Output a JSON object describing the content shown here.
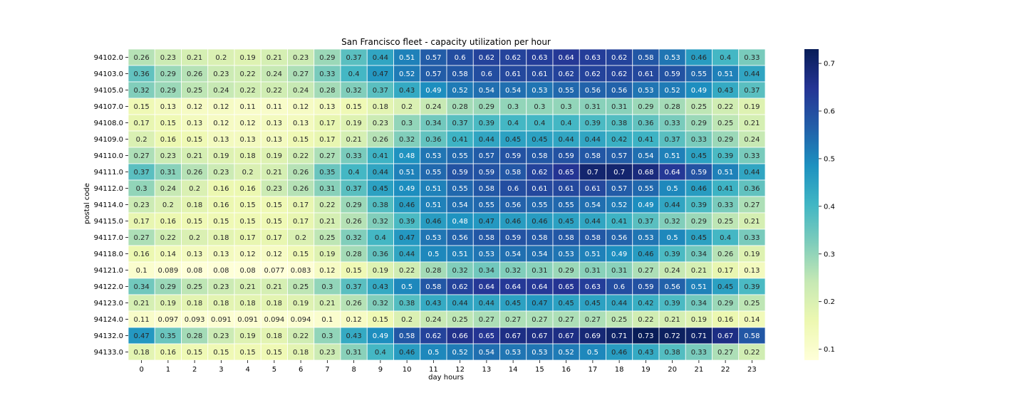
{
  "chart_data": {
    "type": "heatmap",
    "title": "San Francisco fleet -  capacity utilization per hour",
    "xlabel": "day hours",
    "ylabel": "postal code",
    "x": [
      "0",
      "1",
      "2",
      "3",
      "4",
      "5",
      "6",
      "7",
      "8",
      "9",
      "10",
      "11",
      "12",
      "13",
      "14",
      "15",
      "16",
      "17",
      "18",
      "19",
      "20",
      "21",
      "22",
      "23"
    ],
    "y": [
      "94102.0",
      "94103.0",
      "94105.0",
      "94107.0",
      "94108.0",
      "94109.0",
      "94110.0",
      "94111.0",
      "94112.0",
      "94114.0",
      "94115.0",
      "94117.0",
      "94118.0",
      "94121.0",
      "94122.0",
      "94123.0",
      "94124.0",
      "94132.0",
      "94133.0"
    ],
    "values": [
      [
        0.26,
        0.23,
        0.21,
        0.2,
        0.19,
        0.21,
        0.23,
        0.29,
        0.37,
        0.44,
        0.51,
        0.57,
        0.6,
        0.62,
        0.62,
        0.63,
        0.64,
        0.63,
        0.62,
        0.58,
        0.53,
        0.46,
        0.4,
        0.33
      ],
      [
        0.36,
        0.29,
        0.26,
        0.23,
        0.22,
        0.24,
        0.27,
        0.33,
        0.4,
        0.47,
        0.52,
        0.57,
        0.58,
        0.6,
        0.61,
        0.61,
        0.62,
        0.62,
        0.62,
        0.61,
        0.59,
        0.55,
        0.51,
        0.44
      ],
      [
        0.32,
        0.29,
        0.25,
        0.24,
        0.22,
        0.22,
        0.24,
        0.28,
        0.32,
        0.37,
        0.43,
        0.49,
        0.52,
        0.54,
        0.54,
        0.53,
        0.55,
        0.56,
        0.56,
        0.53,
        0.52,
        0.49,
        0.43,
        0.37
      ],
      [
        0.15,
        0.13,
        0.12,
        0.12,
        0.11,
        0.11,
        0.12,
        0.13,
        0.15,
        0.18,
        0.2,
        0.24,
        0.28,
        0.29,
        0.3,
        0.3,
        0.3,
        0.31,
        0.31,
        0.29,
        0.28,
        0.25,
        0.22,
        0.19
      ],
      [
        0.17,
        0.15,
        0.13,
        0.12,
        0.12,
        0.13,
        0.13,
        0.17,
        0.19,
        0.23,
        0.3,
        0.34,
        0.37,
        0.39,
        0.4,
        0.4,
        0.4,
        0.39,
        0.38,
        0.36,
        0.33,
        0.29,
        0.25,
        0.21
      ],
      [
        0.2,
        0.16,
        0.15,
        0.13,
        0.13,
        0.13,
        0.15,
        0.17,
        0.21,
        0.26,
        0.32,
        0.36,
        0.41,
        0.44,
        0.45,
        0.45,
        0.44,
        0.44,
        0.42,
        0.41,
        0.37,
        0.33,
        0.29,
        0.24
      ],
      [
        0.27,
        0.23,
        0.21,
        0.19,
        0.18,
        0.19,
        0.22,
        0.27,
        0.33,
        0.41,
        0.48,
        0.53,
        0.55,
        0.57,
        0.59,
        0.58,
        0.59,
        0.58,
        0.57,
        0.54,
        0.51,
        0.45,
        0.39,
        0.33
      ],
      [
        0.37,
        0.31,
        0.26,
        0.23,
        0.2,
        0.21,
        0.26,
        0.35,
        0.4,
        0.44,
        0.51,
        0.55,
        0.59,
        0.59,
        0.58,
        0.62,
        0.65,
        0.7,
        0.7,
        0.68,
        0.64,
        0.59,
        0.51,
        0.44
      ],
      [
        0.3,
        0.24,
        0.2,
        0.16,
        0.16,
        0.23,
        0.26,
        0.31,
        0.37,
        0.45,
        0.49,
        0.51,
        0.55,
        0.58,
        0.6,
        0.61,
        0.61,
        0.61,
        0.57,
        0.55,
        0.5,
        0.46,
        0.41,
        0.36
      ],
      [
        0.23,
        0.2,
        0.18,
        0.16,
        0.15,
        0.15,
        0.17,
        0.22,
        0.29,
        0.38,
        0.46,
        0.51,
        0.54,
        0.55,
        0.56,
        0.55,
        0.55,
        0.54,
        0.52,
        0.49,
        0.44,
        0.39,
        0.33,
        0.27
      ],
      [
        0.17,
        0.16,
        0.15,
        0.15,
        0.15,
        0.15,
        0.17,
        0.21,
        0.26,
        0.32,
        0.39,
        0.46,
        0.48,
        0.47,
        0.46,
        0.46,
        0.45,
        0.44,
        0.41,
        0.37,
        0.32,
        0.29,
        0.25,
        0.21
      ],
      [
        0.27,
        0.22,
        0.2,
        0.18,
        0.17,
        0.17,
        0.2,
        0.25,
        0.32,
        0.4,
        0.47,
        0.53,
        0.56,
        0.58,
        0.59,
        0.58,
        0.58,
        0.58,
        0.56,
        0.53,
        0.5,
        0.45,
        0.4,
        0.33
      ],
      [
        0.16,
        0.14,
        0.13,
        0.13,
        0.12,
        0.12,
        0.15,
        0.19,
        0.28,
        0.36,
        0.44,
        0.5,
        0.51,
        0.53,
        0.54,
        0.54,
        0.53,
        0.51,
        0.49,
        0.46,
        0.39,
        0.34,
        0.26,
        0.19
      ],
      [
        0.1,
        0.089,
        0.08,
        0.08,
        0.08,
        0.077,
        0.083,
        0.12,
        0.15,
        0.19,
        0.22,
        0.28,
        0.32,
        0.34,
        0.32,
        0.31,
        0.29,
        0.31,
        0.31,
        0.27,
        0.24,
        0.21,
        0.17,
        0.13
      ],
      [
        0.34,
        0.29,
        0.25,
        0.23,
        0.21,
        0.21,
        0.25,
        0.3,
        0.37,
        0.43,
        0.5,
        0.58,
        0.62,
        0.64,
        0.64,
        0.64,
        0.65,
        0.63,
        0.6,
        0.59,
        0.56,
        0.51,
        0.45,
        0.39
      ],
      [
        0.21,
        0.19,
        0.18,
        0.18,
        0.18,
        0.18,
        0.19,
        0.21,
        0.26,
        0.32,
        0.38,
        0.43,
        0.44,
        0.44,
        0.45,
        0.47,
        0.45,
        0.45,
        0.44,
        0.42,
        0.39,
        0.34,
        0.29,
        0.25
      ],
      [
        0.11,
        0.097,
        0.093,
        0.091,
        0.091,
        0.094,
        0.094,
        0.1,
        0.12,
        0.15,
        0.2,
        0.24,
        0.25,
        0.27,
        0.27,
        0.27,
        0.27,
        0.27,
        0.25,
        0.22,
        0.21,
        0.19,
        0.16,
        0.14
      ],
      [
        0.47,
        0.35,
        0.28,
        0.23,
        0.19,
        0.18,
        0.22,
        0.3,
        0.43,
        0.49,
        0.58,
        0.62,
        0.66,
        0.65,
        0.67,
        0.67,
        0.67,
        0.69,
        0.71,
        0.73,
        0.72,
        0.71,
        0.67,
        0.58
      ],
      [
        0.18,
        0.16,
        0.15,
        0.15,
        0.15,
        0.15,
        0.18,
        0.23,
        0.31,
        0.4,
        0.46,
        0.5,
        0.52,
        0.54,
        0.53,
        0.53,
        0.52,
        0.5,
        0.46,
        0.43,
        0.38,
        0.33,
        0.27,
        0.22
      ]
    ],
    "colormap": "YlGnBu",
    "vmin": 0.077,
    "vmax": 0.73,
    "colorbar_ticks": [
      0.1,
      0.2,
      0.3,
      0.4,
      0.5,
      0.6,
      0.7
    ],
    "annotated": true,
    "cell_border_color": "#ffffff"
  }
}
